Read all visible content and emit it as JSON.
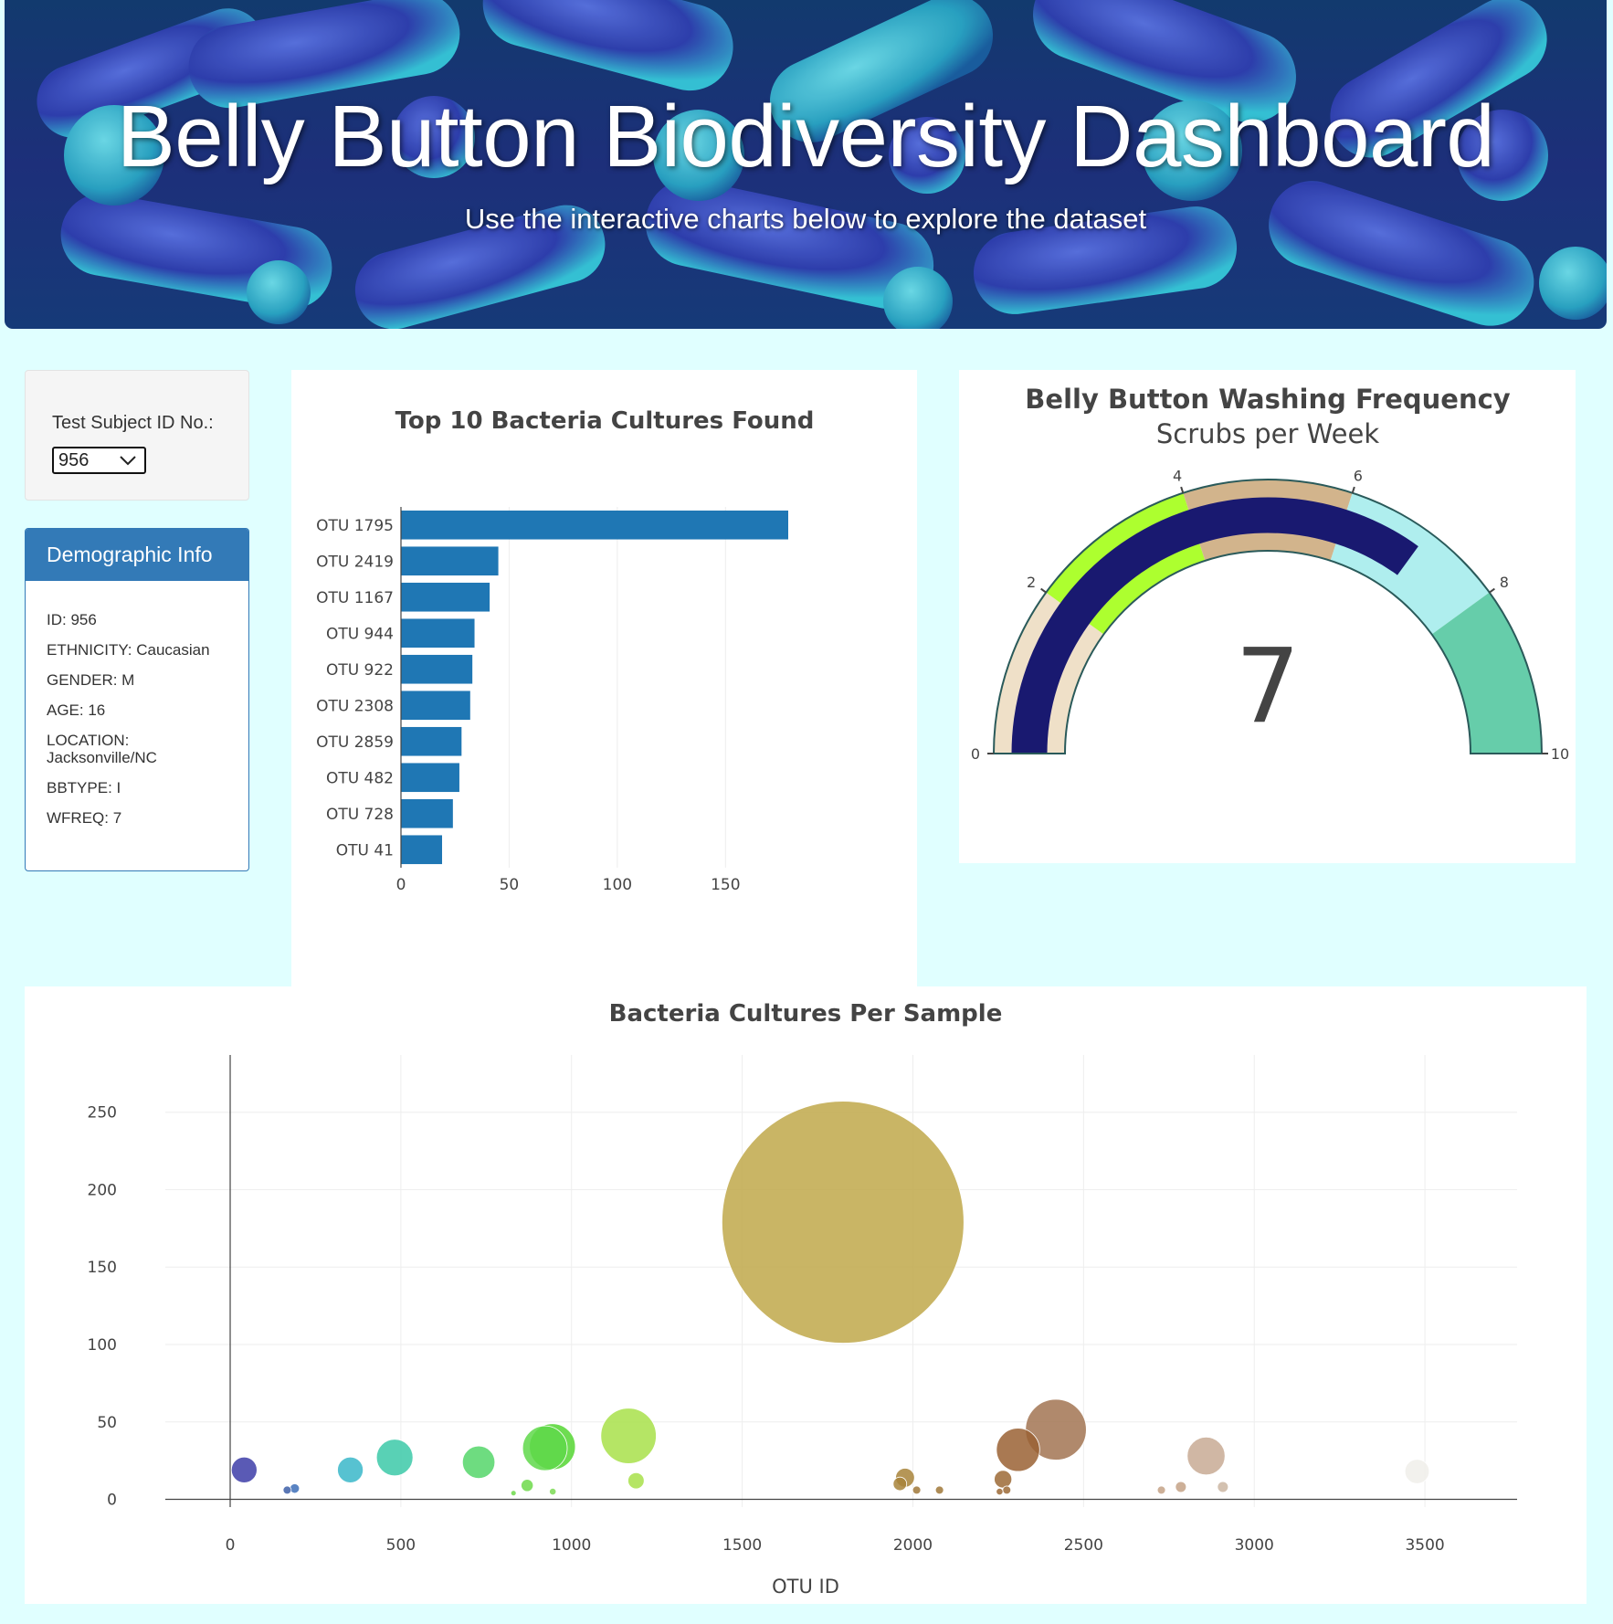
{
  "header": {
    "title": "Belly Button Biodiversity Dashboard",
    "subtitle": "Use the interactive charts below to explore the dataset"
  },
  "selector": {
    "label": "Test Subject ID No.:",
    "selected": "956"
  },
  "demographics": {
    "heading": "Demographic Info",
    "rows": [
      {
        "label": "ID: 956"
      },
      {
        "label": "ETHNICITY: Caucasian"
      },
      {
        "label": "GENDER: M"
      },
      {
        "label": "AGE: 16"
      },
      {
        "label": "LOCATION: Jacksonville/NC"
      },
      {
        "label": "BBTYPE: I"
      },
      {
        "label": "WFREQ: 7"
      }
    ]
  },
  "chart_data": [
    {
      "type": "bar",
      "orientation": "horizontal",
      "title": "Top 10 Bacteria Cultures Found",
      "categories": [
        "OTU 1795",
        "OTU 2419",
        "OTU 1167",
        "OTU 944",
        "OTU 922",
        "OTU 2308",
        "OTU 2859",
        "OTU 482",
        "OTU 728",
        "OTU 41"
      ],
      "values": [
        179,
        45,
        41,
        34,
        33,
        32,
        28,
        27,
        24,
        19
      ],
      "xlim": [
        0,
        179
      ],
      "xticks": [
        0,
        50,
        100,
        150
      ],
      "color": "#1f77b4",
      "grid": true
    },
    {
      "type": "gauge",
      "title": "Belly Button Washing Frequency",
      "subtitle": "Scrubs per Week",
      "value": 7,
      "range": [
        0,
        10
      ],
      "ticks": [
        0,
        2,
        4,
        6,
        8,
        10
      ],
      "bar_color": "#191970",
      "steps": [
        {
          "range": [
            0,
            2
          ],
          "color": "#efe0c8"
        },
        {
          "range": [
            2,
            4
          ],
          "color": "#adff2f"
        },
        {
          "range": [
            4,
            6
          ],
          "color": "#d2b48c"
        },
        {
          "range": [
            6,
            8
          ],
          "color": "#afeeee"
        },
        {
          "range": [
            8,
            10
          ],
          "color": "#66cdaa"
        }
      ]
    },
    {
      "type": "scatter",
      "mode": "bubble",
      "title": "Bacteria Cultures Per Sample",
      "xlabel": "OTU ID",
      "xlim": [
        -190,
        3770
      ],
      "ylim": [
        -5,
        287
      ],
      "xticks": [
        0,
        500,
        1000,
        1500,
        2000,
        2500,
        3000,
        3500
      ],
      "yticks": [
        0,
        50,
        100,
        150,
        200,
        250
      ],
      "points": [
        {
          "x": 41,
          "y": 19,
          "color": "#3d3da8"
        },
        {
          "x": 167,
          "y": 6,
          "color": "#3d5fa8"
        },
        {
          "x": 189,
          "y": 7,
          "color": "#3d6fb8"
        },
        {
          "x": 352,
          "y": 19,
          "color": "#3ab7c9"
        },
        {
          "x": 482,
          "y": 27,
          "color": "#3cc9a8"
        },
        {
          "x": 728,
          "y": 24,
          "color": "#55d66a"
        },
        {
          "x": 830,
          "y": 4,
          "color": "#6dd94a"
        },
        {
          "x": 870,
          "y": 9,
          "color": "#6dd94a"
        },
        {
          "x": 922,
          "y": 33,
          "color": "#5fd84a"
        },
        {
          "x": 944,
          "y": 34,
          "color": "#55d633"
        },
        {
          "x": 945,
          "y": 5,
          "color": "#7ddb55"
        },
        {
          "x": 1167,
          "y": 41,
          "color": "#a8e04a"
        },
        {
          "x": 1189,
          "y": 12,
          "color": "#a8e04a"
        },
        {
          "x": 1795,
          "y": 179,
          "color": "#bfa84a"
        },
        {
          "x": 1977,
          "y": 14,
          "color": "#a8843a"
        },
        {
          "x": 1962,
          "y": 10,
          "color": "#a8843a"
        },
        {
          "x": 2011,
          "y": 6,
          "color": "#a07838"
        },
        {
          "x": 2078,
          "y": 6,
          "color": "#a07838"
        },
        {
          "x": 2264,
          "y": 13,
          "color": "#9c6a36"
        },
        {
          "x": 2254,
          "y": 5,
          "color": "#9c6a36"
        },
        {
          "x": 2275,
          "y": 6,
          "color": "#9c6a36"
        },
        {
          "x": 2308,
          "y": 32,
          "color": "#9a6234"
        },
        {
          "x": 2419,
          "y": 45,
          "color": "#a27452"
        },
        {
          "x": 2728,
          "y": 6,
          "color": "#c4a286"
        },
        {
          "x": 2785,
          "y": 8,
          "color": "#c4a286"
        },
        {
          "x": 2859,
          "y": 28,
          "color": "#c8aa94"
        },
        {
          "x": 2908,
          "y": 8,
          "color": "#cbb6a2"
        },
        {
          "x": 3477,
          "y": 18,
          "color": "#f0eeea"
        }
      ]
    }
  ]
}
